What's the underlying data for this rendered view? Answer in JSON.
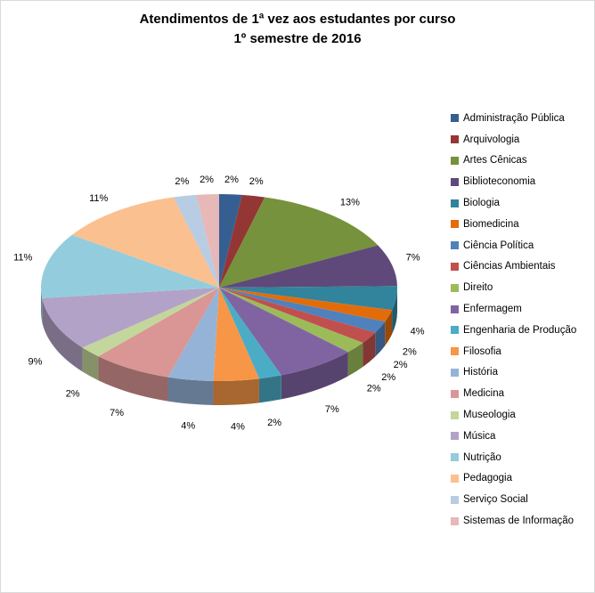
{
  "title": {
    "line1": "Atendimentos de 1ª vez aos estudantes por curso",
    "line2": "1º semestre de 2016"
  },
  "chart_data": {
    "type": "pie",
    "style": "3d",
    "title": "Atendimentos de 1ª vez aos estudantes por curso — 1º semestre de 2016",
    "legend_position": "right",
    "data_labels": "percent-outside",
    "unit": "%",
    "labels": [
      "Administração Pública",
      "Arquivologia",
      "Artes Cênicas",
      "Biblioteconomia",
      "Biologia",
      "Biomedicina",
      "Ciência Política",
      "Ciências Ambientais",
      "Direito",
      "Enfermagem",
      "Engenharia de Produção",
      "Filosofia",
      "História",
      "Medicina",
      "Museologia",
      "Música",
      "Nutrição",
      "Pedagogia",
      "Serviço Social",
      "Sistemas de Informação"
    ],
    "values": [
      2,
      2,
      13,
      7,
      4,
      2,
      2,
      2,
      2,
      7,
      2,
      4,
      4,
      7,
      2,
      9,
      11,
      11,
      2,
      2
    ],
    "colors": [
      "#365F91",
      "#943634",
      "#76923C",
      "#5F497A",
      "#31849B",
      "#E36C0A",
      "#4F81BD",
      "#C0504D",
      "#9BBB59",
      "#8064A2",
      "#4BACC6",
      "#F79646",
      "#95B3D7",
      "#D99694",
      "#C3D69B",
      "#B3A2C7",
      "#93CDDD",
      "#FAC090",
      "#B8CCE4",
      "#E6B9B8"
    ]
  }
}
